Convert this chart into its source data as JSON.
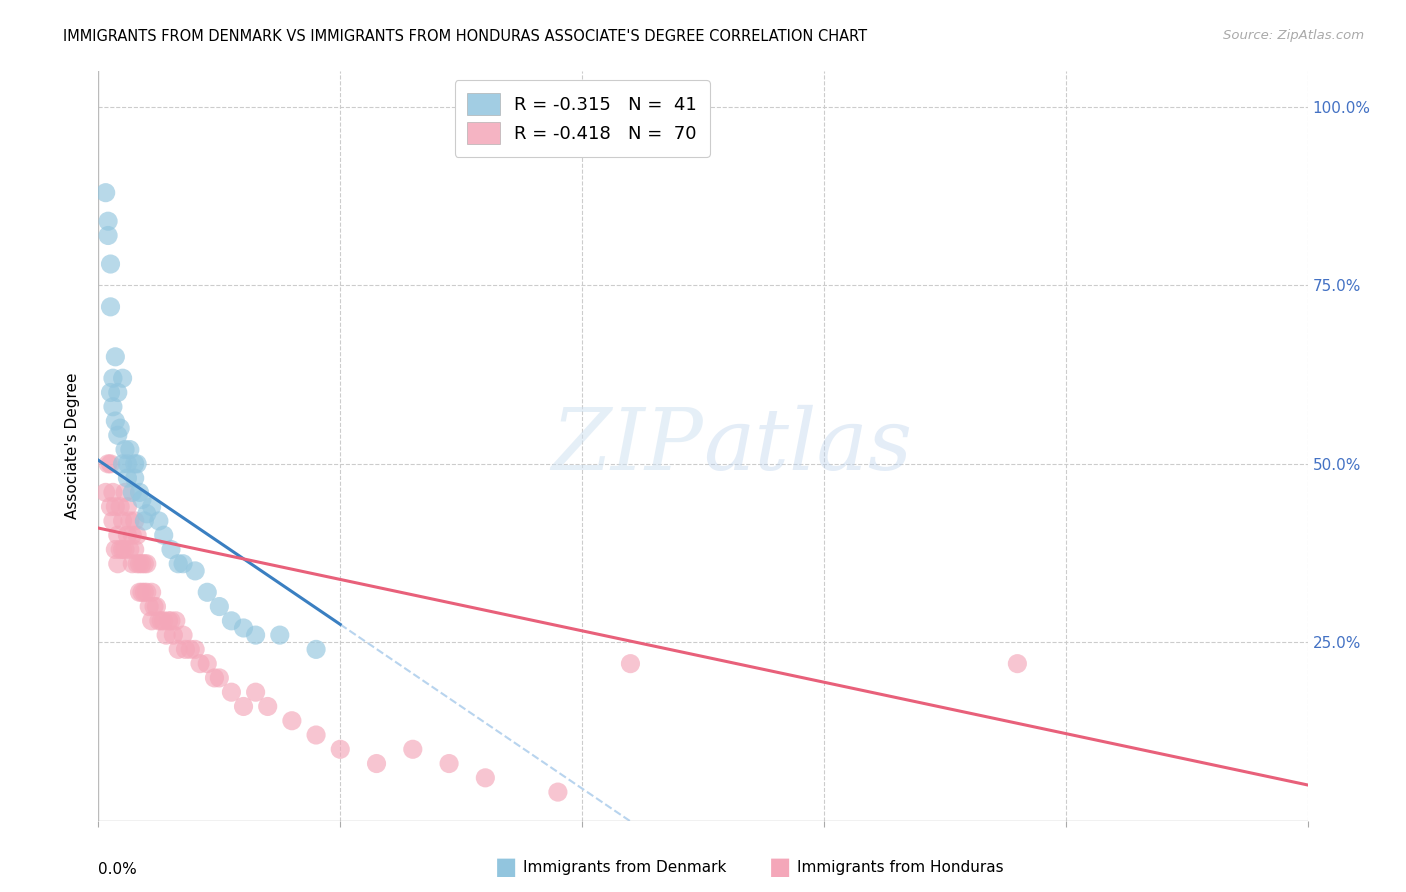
{
  "title": "IMMIGRANTS FROM DENMARK VS IMMIGRANTS FROM HONDURAS ASSOCIATE'S DEGREE CORRELATION CHART",
  "source": "Source: ZipAtlas.com",
  "ylabel": "Associate's Degree",
  "color_denmark": "#92c5de",
  "color_honduras": "#f4a7b9",
  "color_denmark_line": "#3a7fc1",
  "color_honduras_line": "#e8607a",
  "color_dashed": "#b8d4ee",
  "legend_denmark_R": "-0.315",
  "legend_denmark_N": "41",
  "legend_honduras_R": "-0.418",
  "legend_honduras_N": "70",
  "xlim": [
    0.0,
    0.5
  ],
  "ylim": [
    0.0,
    1.05
  ],
  "denmark_x": [
    0.003,
    0.004,
    0.004,
    0.005,
    0.005,
    0.005,
    0.006,
    0.006,
    0.007,
    0.007,
    0.008,
    0.008,
    0.009,
    0.01,
    0.01,
    0.011,
    0.012,
    0.012,
    0.013,
    0.014,
    0.015,
    0.015,
    0.016,
    0.017,
    0.018,
    0.019,
    0.02,
    0.022,
    0.025,
    0.027,
    0.03,
    0.033,
    0.035,
    0.04,
    0.045,
    0.05,
    0.055,
    0.06,
    0.065,
    0.075,
    0.09
  ],
  "denmark_y": [
    0.88,
    0.84,
    0.82,
    0.78,
    0.72,
    0.6,
    0.62,
    0.58,
    0.56,
    0.65,
    0.54,
    0.6,
    0.55,
    0.5,
    0.62,
    0.52,
    0.5,
    0.48,
    0.52,
    0.46,
    0.5,
    0.48,
    0.5,
    0.46,
    0.45,
    0.42,
    0.43,
    0.44,
    0.42,
    0.4,
    0.38,
    0.36,
    0.36,
    0.35,
    0.32,
    0.3,
    0.28,
    0.27,
    0.26,
    0.26,
    0.24
  ],
  "honduras_x": [
    0.003,
    0.004,
    0.005,
    0.005,
    0.006,
    0.006,
    0.007,
    0.007,
    0.008,
    0.008,
    0.009,
    0.009,
    0.01,
    0.01,
    0.011,
    0.011,
    0.012,
    0.012,
    0.013,
    0.013,
    0.014,
    0.014,
    0.015,
    0.015,
    0.016,
    0.016,
    0.017,
    0.017,
    0.018,
    0.018,
    0.019,
    0.019,
    0.02,
    0.02,
    0.021,
    0.022,
    0.022,
    0.023,
    0.024,
    0.025,
    0.026,
    0.027,
    0.028,
    0.029,
    0.03,
    0.031,
    0.032,
    0.033,
    0.035,
    0.036,
    0.038,
    0.04,
    0.042,
    0.045,
    0.048,
    0.05,
    0.055,
    0.06,
    0.065,
    0.07,
    0.08,
    0.09,
    0.1,
    0.115,
    0.13,
    0.145,
    0.16,
    0.19,
    0.22,
    0.38
  ],
  "honduras_y": [
    0.46,
    0.5,
    0.44,
    0.5,
    0.46,
    0.42,
    0.44,
    0.38,
    0.4,
    0.36,
    0.44,
    0.38,
    0.42,
    0.38,
    0.46,
    0.38,
    0.44,
    0.4,
    0.42,
    0.38,
    0.4,
    0.36,
    0.42,
    0.38,
    0.4,
    0.36,
    0.36,
    0.32,
    0.36,
    0.32,
    0.36,
    0.32,
    0.36,
    0.32,
    0.3,
    0.32,
    0.28,
    0.3,
    0.3,
    0.28,
    0.28,
    0.28,
    0.26,
    0.28,
    0.28,
    0.26,
    0.28,
    0.24,
    0.26,
    0.24,
    0.24,
    0.24,
    0.22,
    0.22,
    0.2,
    0.2,
    0.18,
    0.16,
    0.18,
    0.16,
    0.14,
    0.12,
    0.1,
    0.08,
    0.1,
    0.08,
    0.06,
    0.04,
    0.22,
    0.22
  ],
  "dk_line_x0": 0.0,
  "dk_line_y0": 0.505,
  "dk_line_x1": 0.1,
  "dk_line_y1": 0.275,
  "dk_line_solid_end": 0.1,
  "dk_line_dash_end": 0.5,
  "hn_line_x0": 0.0,
  "hn_line_y0": 0.41,
  "hn_line_x1": 0.5,
  "hn_line_y1": 0.05
}
